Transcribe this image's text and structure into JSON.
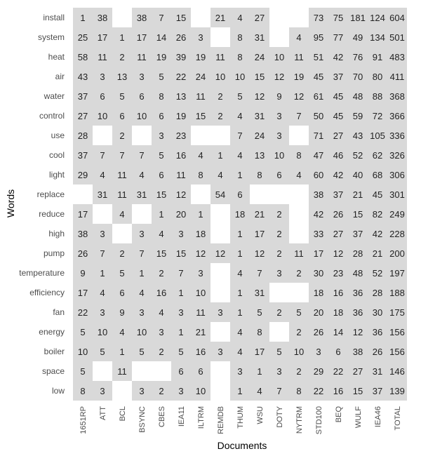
{
  "chart_data": {
    "type": "heatmap",
    "xlabel": "Documents",
    "ylabel": "Words",
    "columns": [
      "1651RP",
      "ATT",
      "BCL",
      "BSYNC",
      "CBES",
      "IEA11",
      "ILTRM",
      "REMDB",
      "THUM",
      "WSU",
      "DOTY",
      "NYTRM",
      "STD100",
      "BEQ",
      "WULF",
      "IEA46",
      "TOTAL"
    ],
    "rows": [
      {
        "word": "install",
        "values": [
          1,
          38,
          null,
          38,
          7,
          15,
          null,
          21,
          4,
          27,
          null,
          null,
          73,
          75,
          181,
          124,
          604
        ]
      },
      {
        "word": "system",
        "values": [
          25,
          17,
          1,
          17,
          14,
          26,
          3,
          null,
          8,
          31,
          null,
          4,
          95,
          77,
          49,
          134,
          501
        ]
      },
      {
        "word": "heat",
        "values": [
          58,
          11,
          2,
          11,
          19,
          39,
          19,
          11,
          8,
          24,
          10,
          11,
          51,
          42,
          76,
          91,
          483
        ]
      },
      {
        "word": "air",
        "values": [
          43,
          3,
          13,
          3,
          5,
          22,
          24,
          10,
          10,
          15,
          12,
          19,
          45,
          37,
          70,
          80,
          411
        ]
      },
      {
        "word": "water",
        "values": [
          37,
          6,
          5,
          6,
          8,
          13,
          11,
          2,
          5,
          12,
          9,
          12,
          61,
          45,
          48,
          88,
          368
        ]
      },
      {
        "word": "control",
        "values": [
          27,
          10,
          6,
          10,
          6,
          19,
          15,
          2,
          4,
          31,
          3,
          7,
          50,
          45,
          59,
          72,
          366
        ]
      },
      {
        "word": "use",
        "values": [
          28,
          null,
          2,
          null,
          3,
          23,
          null,
          null,
          7,
          24,
          3,
          null,
          71,
          27,
          43,
          105,
          336
        ]
      },
      {
        "word": "cool",
        "values": [
          37,
          7,
          7,
          7,
          5,
          16,
          4,
          1,
          4,
          13,
          10,
          8,
          47,
          46,
          52,
          62,
          326
        ]
      },
      {
        "word": "light",
        "values": [
          29,
          4,
          11,
          4,
          6,
          11,
          8,
          4,
          1,
          8,
          6,
          4,
          60,
          42,
          40,
          68,
          306
        ]
      },
      {
        "word": "replace",
        "values": [
          null,
          31,
          11,
          31,
          15,
          12,
          null,
          54,
          6,
          null,
          null,
          null,
          38,
          37,
          21,
          45,
          301
        ]
      },
      {
        "word": "reduce",
        "values": [
          17,
          null,
          4,
          null,
          1,
          20,
          1,
          null,
          18,
          21,
          2,
          null,
          42,
          26,
          15,
          82,
          249
        ]
      },
      {
        "word": "high",
        "values": [
          38,
          3,
          null,
          3,
          4,
          3,
          18,
          null,
          1,
          17,
          2,
          null,
          33,
          27,
          37,
          42,
          228
        ]
      },
      {
        "word": "pump",
        "values": [
          26,
          7,
          2,
          7,
          15,
          15,
          12,
          12,
          1,
          12,
          2,
          11,
          17,
          12,
          28,
          21,
          200
        ]
      },
      {
        "word": "temperature",
        "values": [
          9,
          1,
          5,
          1,
          2,
          7,
          3,
          null,
          4,
          7,
          3,
          2,
          30,
          23,
          48,
          52,
          197
        ]
      },
      {
        "word": "efficiency",
        "values": [
          17,
          4,
          6,
          4,
          16,
          1,
          10,
          null,
          1,
          31,
          null,
          null,
          18,
          16,
          36,
          28,
          188
        ]
      },
      {
        "word": "fan",
        "values": [
          22,
          3,
          9,
          3,
          4,
          3,
          11,
          3,
          1,
          5,
          2,
          5,
          20,
          18,
          36,
          30,
          175
        ]
      },
      {
        "word": "energy",
        "values": [
          5,
          10,
          4,
          10,
          3,
          1,
          21,
          null,
          4,
          8,
          null,
          2,
          26,
          14,
          12,
          36,
          156
        ]
      },
      {
        "word": "boiler",
        "values": [
          10,
          5,
          1,
          5,
          2,
          5,
          16,
          3,
          4,
          17,
          5,
          10,
          3,
          6,
          38,
          26,
          156
        ]
      },
      {
        "word": "space",
        "values": [
          5,
          null,
          11,
          null,
          null,
          6,
          6,
          null,
          3,
          1,
          3,
          2,
          29,
          22,
          27,
          31,
          146
        ]
      },
      {
        "word": "low",
        "values": [
          8,
          3,
          null,
          3,
          2,
          3,
          10,
          null,
          1,
          4,
          7,
          8,
          22,
          16,
          15,
          37,
          139
        ]
      }
    ],
    "cell_color": "#d9d9d9",
    "empty_color": "#ffffff",
    "grid": true,
    "legend": "none"
  }
}
